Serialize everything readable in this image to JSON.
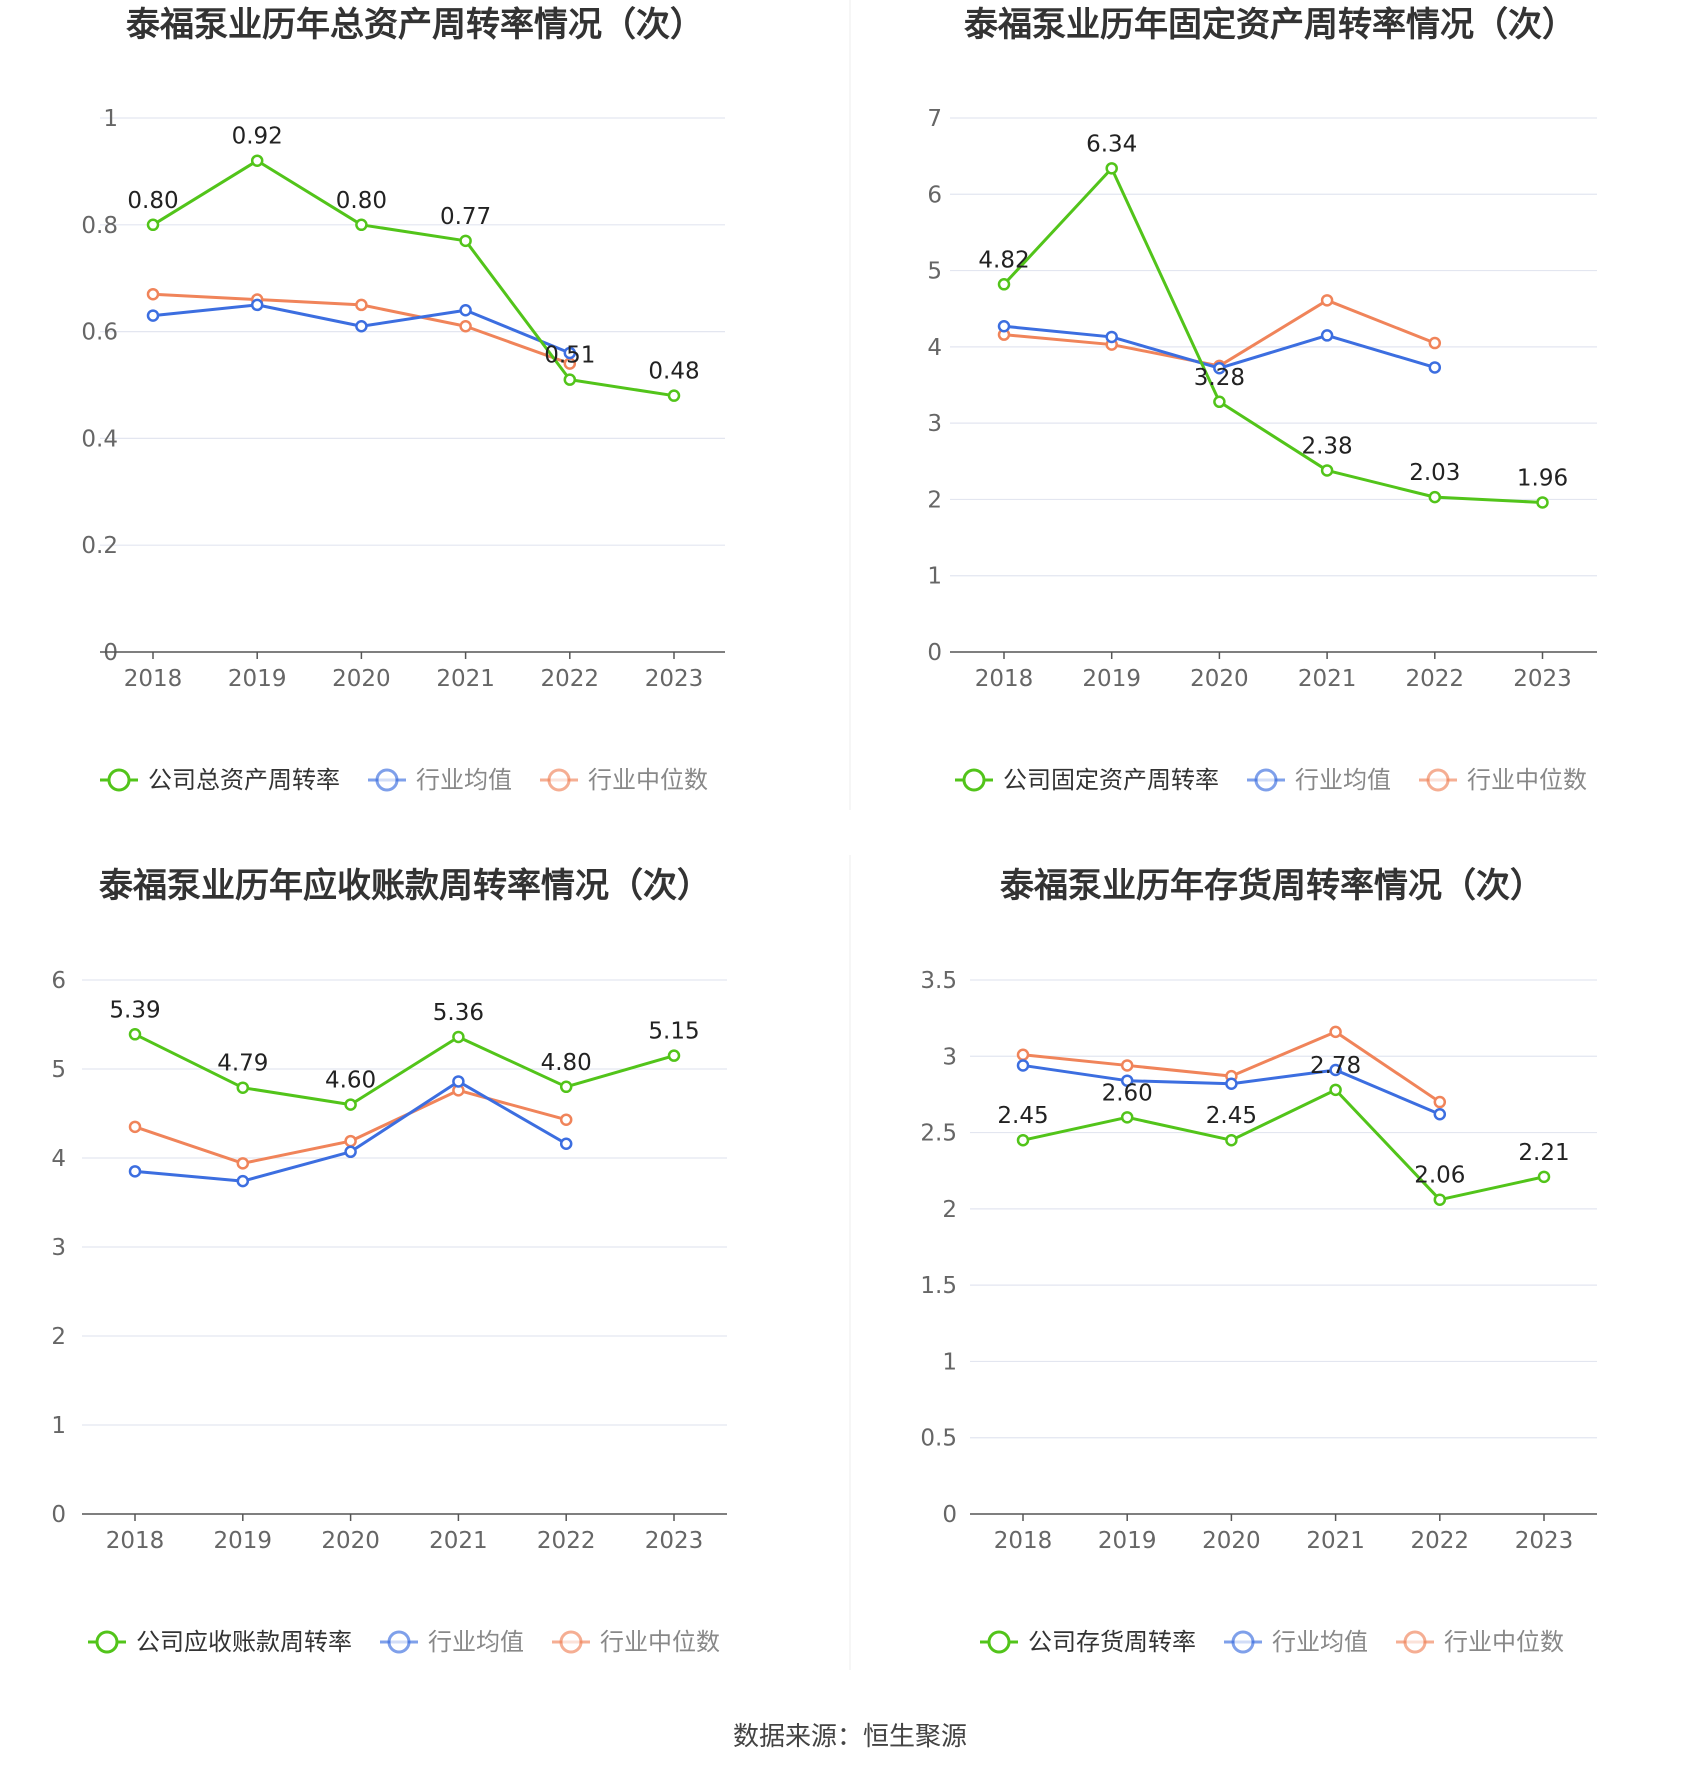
{
  "source_text": "数据来源：恒生聚源",
  "chart_data": [
    {
      "type": "line",
      "title": "泰福泵业历年总资产周转率情况（次）",
      "categories": [
        "2018",
        "2019",
        "2020",
        "2021",
        "2022",
        "2023"
      ],
      "ylim": [
        0,
        1
      ],
      "yticks": [
        "0",
        "0.2",
        "0.4",
        "0.6",
        "0.8",
        "1"
      ],
      "ytick_values": [
        0,
        0.2,
        0.4,
        0.6,
        0.8,
        1
      ],
      "grid": true,
      "legend_position": "bottom",
      "series": [
        {
          "name": "公司总资产周转率",
          "color": "#52c41a",
          "values": [
            0.8,
            0.92,
            0.8,
            0.77,
            0.51,
            0.48
          ],
          "labels": [
            "0.80",
            "0.92",
            "0.80",
            "0.77",
            "0.51",
            "0.48"
          ]
        },
        {
          "name": "行业均值",
          "color": "#3c6ee0",
          "values": [
            0.63,
            0.65,
            0.61,
            0.64,
            0.56,
            null
          ]
        },
        {
          "name": "行业中位数",
          "color": "#f0845a",
          "values": [
            0.67,
            0.66,
            0.65,
            0.61,
            0.54,
            null
          ]
        }
      ]
    },
    {
      "type": "line",
      "title": "泰福泵业历年固定资产周转率情况（次）",
      "categories": [
        "2018",
        "2019",
        "2020",
        "2021",
        "2022",
        "2023"
      ],
      "ylim": [
        0,
        7
      ],
      "yticks": [
        "0",
        "1",
        "2",
        "3",
        "4",
        "5",
        "6",
        "7"
      ],
      "ytick_values": [
        0,
        1,
        2,
        3,
        4,
        5,
        6,
        7
      ],
      "grid": true,
      "legend_position": "bottom",
      "series": [
        {
          "name": "公司固定资产周转率",
          "color": "#52c41a",
          "values": [
            4.82,
            6.34,
            3.28,
            2.38,
            2.03,
            1.96
          ],
          "labels": [
            "4.82",
            "6.34",
            "3.28",
            "2.38",
            "2.03",
            "1.96"
          ]
        },
        {
          "name": "行业均值",
          "color": "#3c6ee0",
          "values": [
            4.27,
            4.13,
            3.72,
            4.15,
            3.73,
            null
          ]
        },
        {
          "name": "行业中位数",
          "color": "#f0845a",
          "values": [
            4.16,
            4.03,
            3.75,
            4.61,
            4.05,
            null
          ]
        }
      ]
    },
    {
      "type": "line",
      "title": "泰福泵业历年应收账款周转率情况（次）",
      "categories": [
        "2018",
        "2019",
        "2020",
        "2021",
        "2022",
        "2023"
      ],
      "ylim": [
        0,
        6
      ],
      "yticks": [
        "0",
        "1",
        "2",
        "3",
        "4",
        "5",
        "6"
      ],
      "ytick_values": [
        0,
        1,
        2,
        3,
        4,
        5,
        6
      ],
      "grid": true,
      "legend_position": "bottom",
      "series": [
        {
          "name": "公司应收账款周转率",
          "color": "#52c41a",
          "values": [
            5.39,
            4.79,
            4.6,
            5.36,
            4.8,
            5.15
          ],
          "labels": [
            "5.39",
            "4.79",
            "4.60",
            "5.36",
            "4.80",
            "5.15"
          ]
        },
        {
          "name": "行业均值",
          "color": "#3c6ee0",
          "values": [
            3.85,
            3.74,
            4.07,
            4.86,
            4.16,
            null
          ]
        },
        {
          "name": "行业中位数",
          "color": "#f0845a",
          "values": [
            4.35,
            3.94,
            4.19,
            4.76,
            4.43,
            null
          ]
        }
      ]
    },
    {
      "type": "line",
      "title": "泰福泵业历年存货周转率情况（次）",
      "categories": [
        "2018",
        "2019",
        "2020",
        "2021",
        "2022",
        "2023"
      ],
      "ylim": [
        0,
        3.5
      ],
      "yticks": [
        "0",
        "0.5",
        "1",
        "1.5",
        "2",
        "2.5",
        "3",
        "3.5"
      ],
      "ytick_values": [
        0,
        0.5,
        1,
        1.5,
        2,
        2.5,
        3,
        3.5
      ],
      "grid": true,
      "legend_position": "bottom",
      "series": [
        {
          "name": "公司存货周转率",
          "color": "#52c41a",
          "values": [
            2.45,
            2.6,
            2.45,
            2.78,
            2.06,
            2.21
          ],
          "labels": [
            "2.45",
            "2.60",
            "2.45",
            "2.78",
            "2.06",
            "2.21"
          ]
        },
        {
          "name": "行业均值",
          "color": "#3c6ee0",
          "values": [
            2.94,
            2.84,
            2.82,
            2.91,
            2.62,
            null
          ]
        },
        {
          "name": "行业中位数",
          "color": "#f0845a",
          "values": [
            3.01,
            2.94,
            2.87,
            3.16,
            2.7,
            null
          ]
        }
      ]
    }
  ]
}
